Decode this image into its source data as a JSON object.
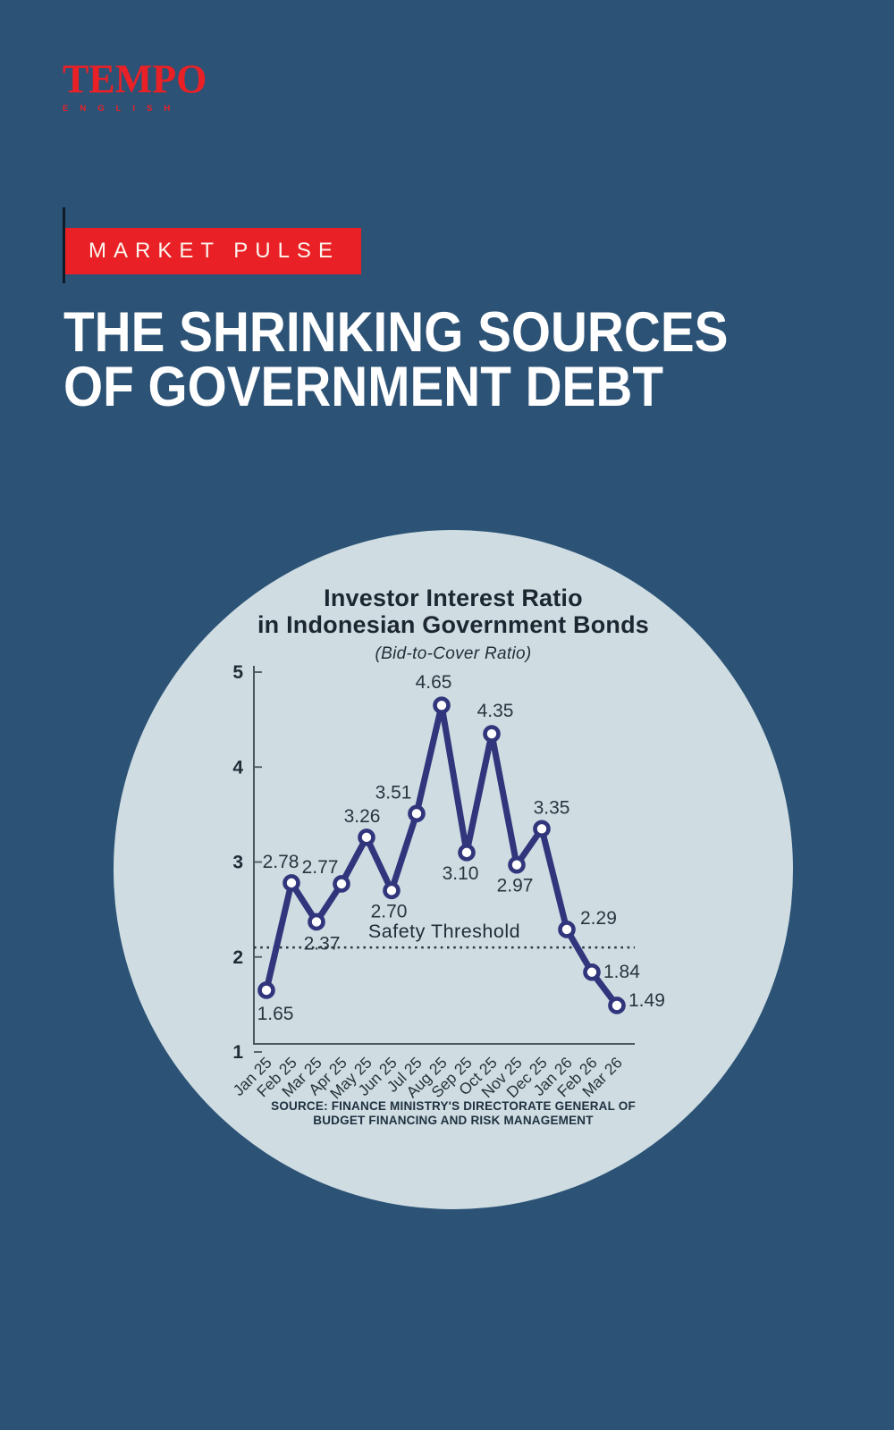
{
  "colors": {
    "background": "#2c5275",
    "accent_red": "#e92127",
    "circle_fill": "#cfdde3",
    "title_ink": "#ffffff"
  },
  "branding": {
    "logo_text": "TEMPO",
    "logo_subtext": "ENGLISH"
  },
  "kicker": {
    "label": "MARKET PULSE"
  },
  "title": {
    "line1": "THE SHRINKING SOURCES",
    "line2": "OF GOVERNMENT DEBT"
  },
  "chart_data": {
    "type": "line",
    "title_line1": "Investor Interest Ratio",
    "title_line2": "in Indonesian Government Bonds",
    "subtitle": "(Bid-to-Cover Ratio)",
    "categories": [
      "Jan 25",
      "Feb 25",
      "Mar 25",
      "Apr 25",
      "May 25",
      "Jun 25",
      "Jul 25",
      "Aug 25",
      "Sep 25",
      "Oct 25",
      "Nov 25",
      "Dec 25",
      "Jan 26",
      "Feb 26",
      "Mar 26"
    ],
    "values": [
      1.65,
      2.78,
      2.37,
      2.77,
      3.26,
      2.7,
      3.51,
      4.65,
      3.1,
      4.35,
      2.97,
      3.35,
      2.29,
      1.84,
      1.49
    ],
    "ylim": [
      1,
      5
    ],
    "yticks": [
      1,
      2,
      3,
      4,
      5
    ],
    "grid": false,
    "legend": "none",
    "threshold": {
      "value": 2.1,
      "label": "Safety Threshold"
    },
    "colors": {
      "line": "#31357b",
      "marker_fill": "#ffffff",
      "axis": "#49575f",
      "threshold": "#2c3740"
    }
  },
  "source": {
    "line1": "SOURCE: FINANCE MINISTRY'S DIRECTORATE GENERAL OF",
    "line2": "BUDGET FINANCING AND RISK MANAGEMENT"
  }
}
